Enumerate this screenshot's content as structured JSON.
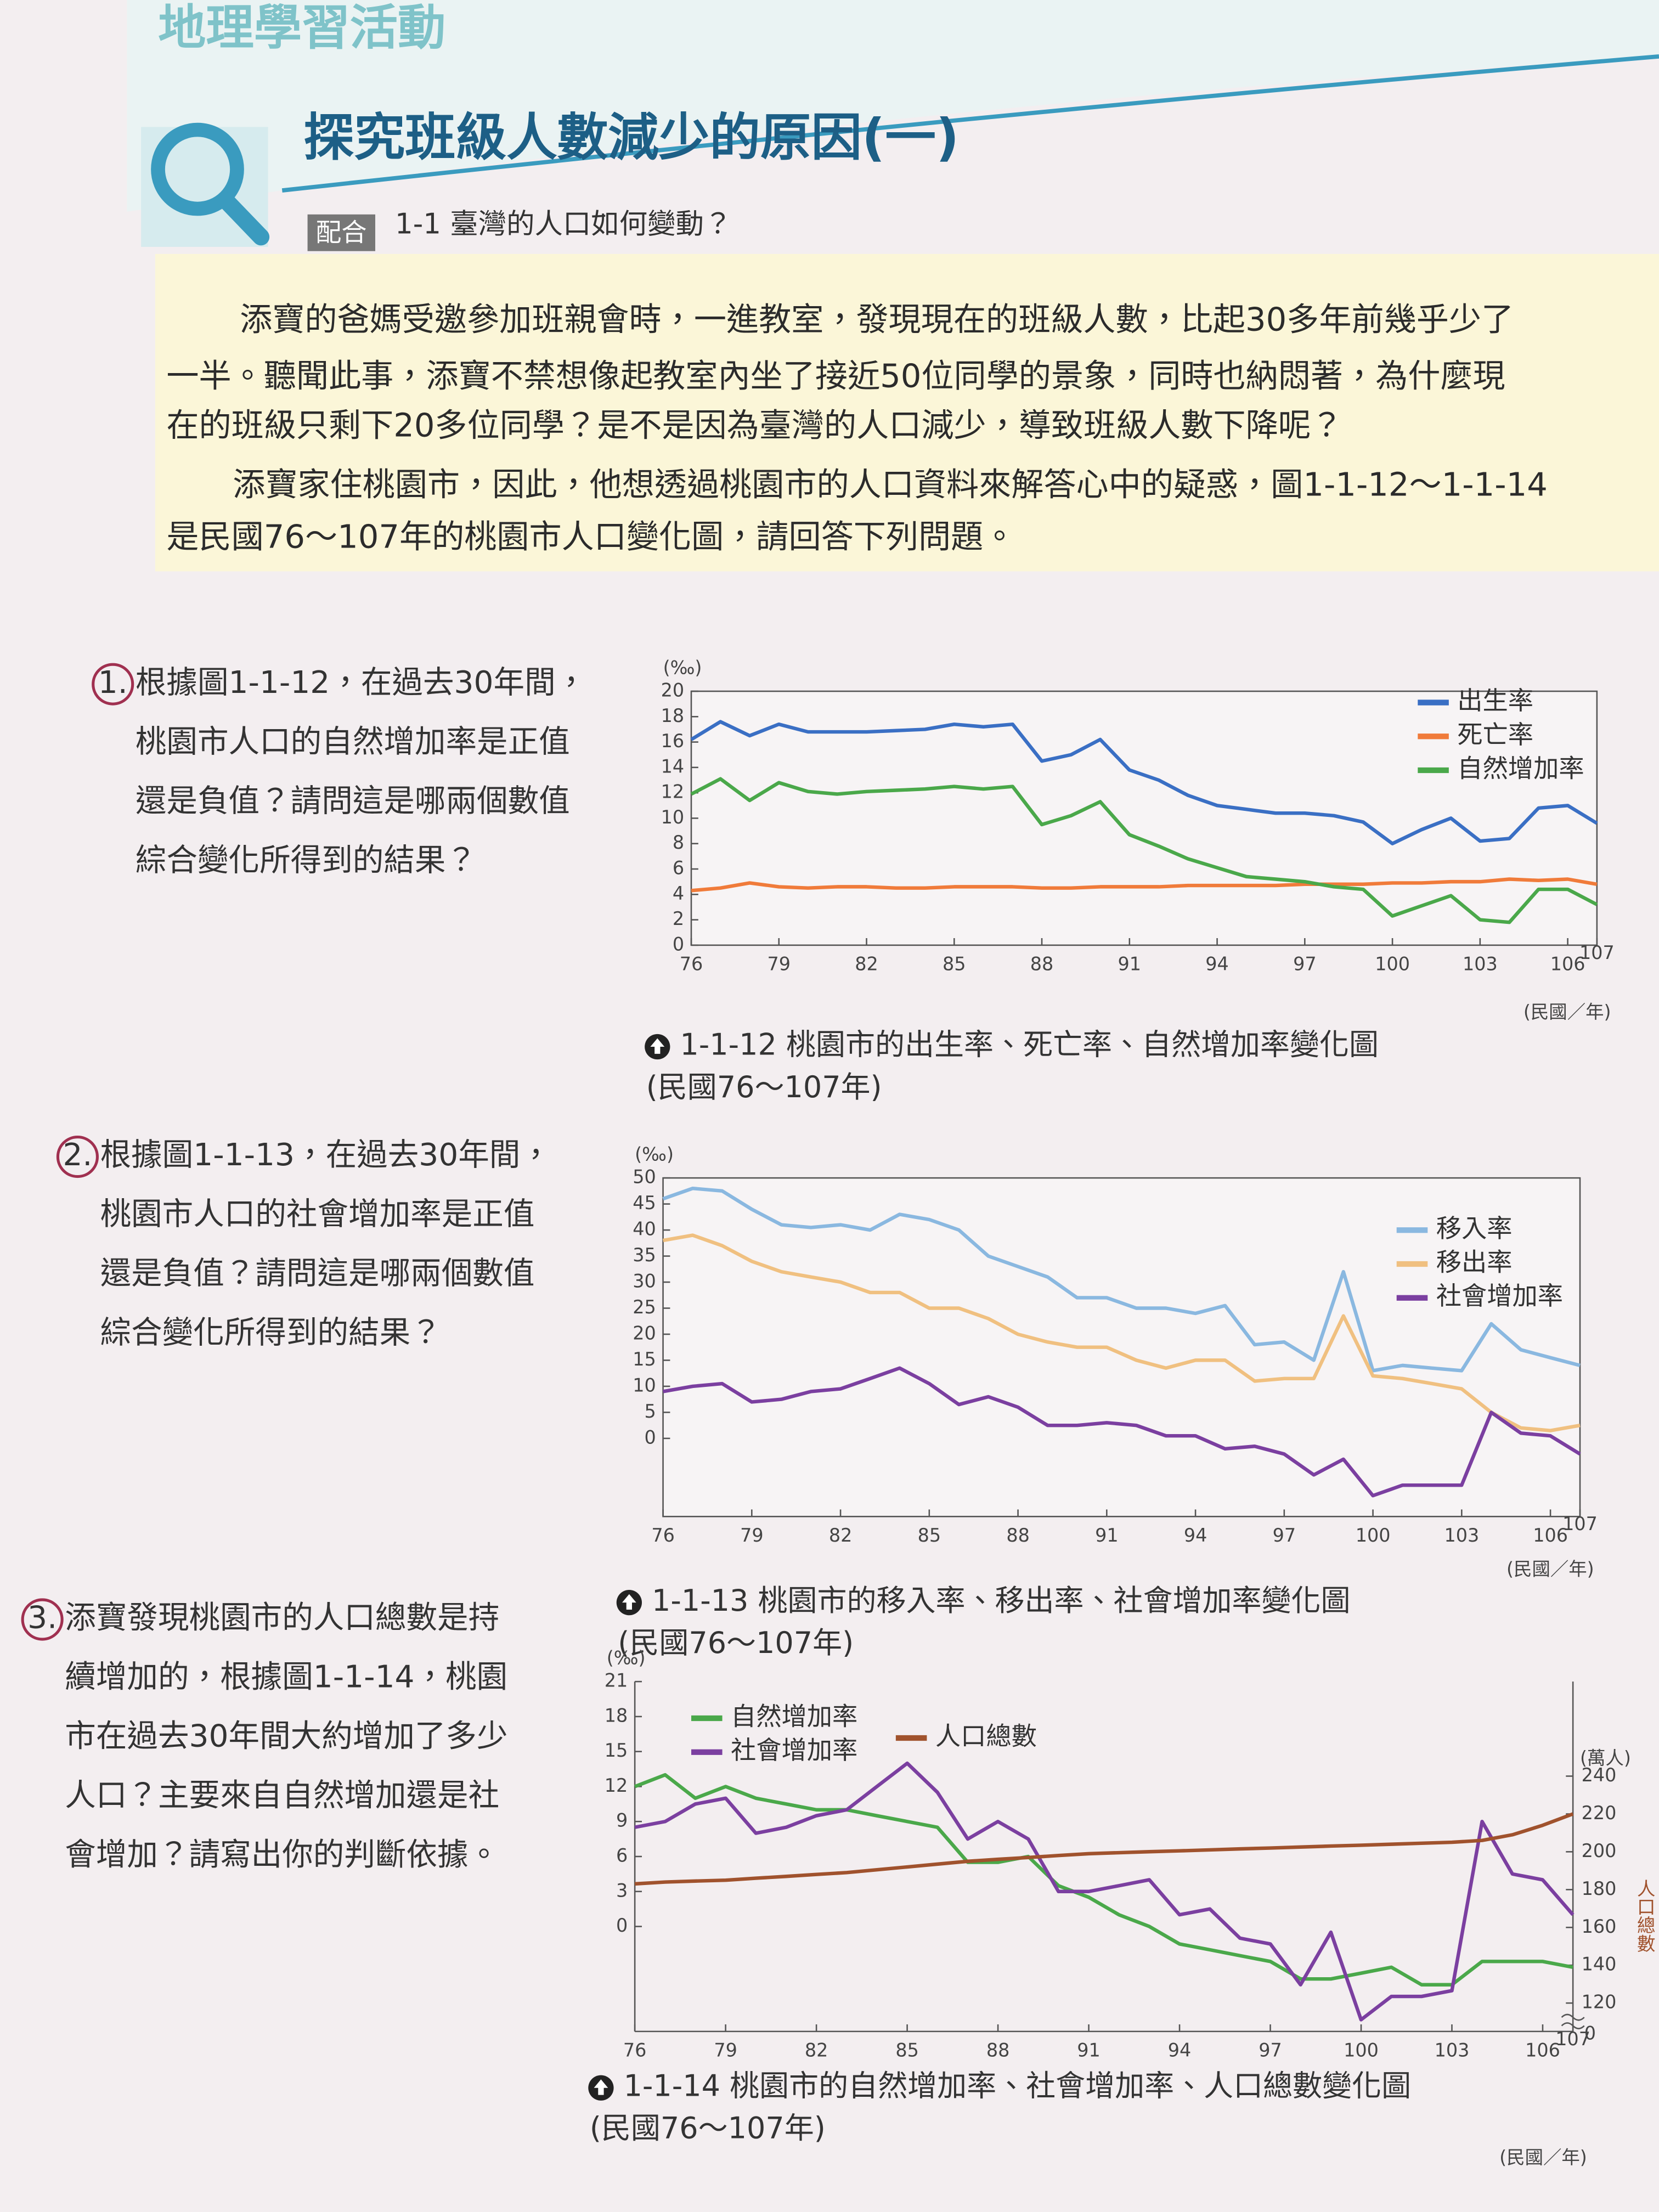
{
  "header": {
    "section": "地理學習活動",
    "title": "探究班級人數減少的原因(一)",
    "tag": "配合",
    "ref": "1-1 臺灣的人口如何變動？"
  },
  "intro": {
    "lines": [
      "添寶的爸媽受邀參加班親會時，一進教室，發現現在的班級人數，比起30多年前幾乎少了",
      "一半。聽聞此事，添寶不禁想像起教室內坐了接近50位同學的景象，同時也納悶著，為什麼現",
      "在的班級只剩下20多位同學？是不是因為臺灣的人口減少，導致班級人數下降呢？",
      "添寶家住桃園市，因此，他想透過桃園市的人口資料來解答心中的疑惑，圖1-1-12～1-1-14",
      "是民國76～107年的桃園市人口變化圖，請回答下列問題。"
    ]
  },
  "questions": [
    {
      "number": "1.",
      "lines": [
        "根據圖1-1-12，在過去30年間，",
        "桃園市人口的自然增加率是正值",
        "還是負值？請問這是哪兩個數值",
        "綜合變化所得到的結果？"
      ]
    },
    {
      "number": "2.",
      "lines": [
        "根據圖1-1-13，在過去30年間，",
        "桃園市人口的社會增加率是正值",
        "還是負值？請問這是哪兩個數值",
        "綜合變化所得到的結果？"
      ]
    },
    {
      "number": "3.",
      "lines": [
        "添寶發現桃園市的人口總數是持",
        "續增加的，根據圖1-1-14，桃園",
        "市在過去30年間大約增加了多少",
        "人口？主要來自自然增加還是社",
        "會增加？請寫出你的判斷依據。"
      ]
    }
  ],
  "chart_data": [
    {
      "type": "line",
      "y_unit": "(‰)",
      "x_label": "(民國／年)",
      "caption": "1-1-12 桃園市的出生率、死亡率、自然增加率變化圖",
      "caption_range": "(民國76～107年)",
      "legend": "top-right",
      "frame": true,
      "x": [
        76,
        77,
        78,
        79,
        80,
        81,
        82,
        83,
        84,
        85,
        86,
        87,
        88,
        89,
        90,
        91,
        92,
        93,
        94,
        95,
        96,
        97,
        98,
        99,
        100,
        101,
        102,
        103,
        104,
        105,
        106,
        107
      ],
      "xlim": [
        76,
        107
      ],
      "xticks": [
        76,
        79,
        82,
        85,
        88,
        91,
        94,
        97,
        100,
        103,
        106,
        107
      ],
      "ylim": [
        0,
        20
      ],
      "yticks": [
        0,
        2,
        4,
        6,
        8,
        10,
        12,
        14,
        16,
        18,
        20
      ],
      "series": [
        {
          "name": "出生率",
          "color": "#3a6fc4",
          "values": [
            16.2,
            17.6,
            16.5,
            17.4,
            16.8,
            16.8,
            16.8,
            16.9,
            17.0,
            17.4,
            17.2,
            17.4,
            14.5,
            15.0,
            16.2,
            13.8,
            13.0,
            11.8,
            11.0,
            10.7,
            10.4,
            10.4,
            10.2,
            9.7,
            8.0,
            9.1,
            10.0,
            8.2,
            8.4,
            10.8,
            11.0,
            9.6
          ]
        },
        {
          "name": "死亡率",
          "color": "#f07b3a",
          "values": [
            4.3,
            4.5,
            4.9,
            4.6,
            4.5,
            4.6,
            4.6,
            4.5,
            4.5,
            4.6,
            4.6,
            4.6,
            4.5,
            4.5,
            4.6,
            4.6,
            4.6,
            4.7,
            4.7,
            4.7,
            4.7,
            4.8,
            4.8,
            4.8,
            4.9,
            4.9,
            5.0,
            5.0,
            5.2,
            5.1,
            5.2,
            4.8
          ]
        },
        {
          "name": "自然增加率",
          "color": "#4aa84a",
          "values": [
            11.9,
            13.1,
            11.4,
            12.8,
            12.1,
            11.9,
            12.1,
            12.2,
            12.3,
            12.5,
            12.3,
            12.5,
            9.5,
            10.2,
            11.3,
            8.7,
            7.8,
            6.8,
            6.1,
            5.4,
            5.2,
            5.0,
            4.6,
            4.4,
            2.3,
            3.1,
            3.9,
            2.0,
            1.8,
            4.4,
            4.4,
            3.2
          ]
        }
      ]
    },
    {
      "type": "line",
      "y_unit": "(‰)",
      "x_label": "(民國／年)",
      "caption": "1-1-13 桃園市的移入率、移出率、社會增加率變化圖",
      "caption_range": "(民國76～107年)",
      "legend": "top-right",
      "frame": true,
      "x": [
        76,
        77,
        78,
        79,
        80,
        81,
        82,
        83,
        84,
        85,
        86,
        87,
        88,
        89,
        90,
        91,
        92,
        93,
        94,
        95,
        96,
        97,
        98,
        99,
        100,
        101,
        102,
        103,
        104,
        105,
        106,
        107
      ],
      "xlim": [
        76,
        107
      ],
      "xticks": [
        76,
        79,
        82,
        85,
        88,
        91,
        94,
        97,
        100,
        103,
        106,
        107
      ],
      "ylim": [
        -15,
        50
      ],
      "yticks": [
        0,
        5,
        10,
        15,
        20,
        25,
        30,
        35,
        40,
        45,
        50
      ],
      "series": [
        {
          "name": "移入率",
          "color": "#8ab8e0",
          "values": [
            46,
            48,
            47.5,
            44,
            41,
            40.5,
            41,
            40,
            43,
            42,
            40,
            35,
            33,
            31,
            27,
            27,
            25,
            25,
            24,
            25.5,
            18,
            18.5,
            15,
            32,
            13,
            14,
            13.5,
            13,
            22,
            17,
            15.5,
            14
          ]
        },
        {
          "name": "移出率",
          "color": "#f0c080",
          "values": [
            38,
            39,
            37,
            34,
            32,
            31,
            30,
            28,
            28,
            25,
            25,
            23,
            20,
            18.5,
            17.5,
            17.5,
            15,
            13.5,
            15,
            15,
            11,
            11.5,
            11.5,
            23.5,
            12,
            11.5,
            10.5,
            9.5,
            5,
            2,
            1.5,
            2.5
          ]
        },
        {
          "name": "社會增加率",
          "color": "#7b3fa0",
          "values": [
            9,
            10,
            10.5,
            7,
            7.5,
            9,
            9.5,
            11.5,
            13.5,
            10.5,
            6.5,
            8,
            6,
            2.5,
            2.5,
            3,
            2.5,
            0.5,
            0.5,
            -2,
            -1.5,
            -3,
            -7,
            -4,
            -11,
            -9,
            -9,
            -9,
            5,
            1,
            0.5,
            -3
          ]
        }
      ]
    },
    {
      "type": "line",
      "y_unit": "(‰)",
      "x_label": "(民國／年)",
      "y2_unit": "(萬人)",
      "y2_label": "人口總數",
      "y2_break_label": "0",
      "caption": "1-1-14 桃園市的自然增加率、社會增加率、人口總數變化圖",
      "caption_range": "(民國76～107年)",
      "legend": "top-left",
      "frame": false,
      "x": [
        76,
        77,
        78,
        79,
        80,
        81,
        82,
        83,
        84,
        85,
        86,
        87,
        88,
        89,
        90,
        91,
        92,
        93,
        94,
        95,
        96,
        97,
        98,
        99,
        100,
        101,
        102,
        103,
        104,
        105,
        106,
        107
      ],
      "xlim": [
        76,
        107
      ],
      "xticks": [
        76,
        79,
        82,
        85,
        88,
        91,
        94,
        97,
        100,
        103,
        106,
        107
      ],
      "ylim": [
        -9,
        21
      ],
      "yticks": [
        0,
        3,
        6,
        9,
        12,
        15,
        18,
        21
      ],
      "y2lim": [
        105,
        290
      ],
      "y2ticks": [
        120,
        140,
        160,
        180,
        200,
        220,
        240
      ],
      "series": [
        {
          "name": "自然增加率",
          "color": "#4aa84a",
          "values": [
            12,
            13,
            11,
            12,
            11,
            10.5,
            10,
            10,
            9.5,
            9,
            8.5,
            5.5,
            5.5,
            6,
            3.5,
            2.5,
            1,
            0,
            -1.5,
            -2,
            -2.5,
            -3,
            -4.5,
            -4.5,
            -4,
            -3.5,
            -5,
            -5,
            -3,
            -3,
            -3,
            -3.5
          ]
        },
        {
          "name": "社會增加率",
          "color": "#7b3fa0",
          "values": [
            8.5,
            9,
            10.5,
            11,
            8,
            8.5,
            9.5,
            10,
            12,
            14,
            11.5,
            7.5,
            9,
            7.5,
            3,
            3,
            3.5,
            4,
            1,
            1.5,
            -1,
            -1.5,
            -5,
            -0.5,
            -8,
            -6,
            -6,
            -5.5,
            9,
            4.5,
            4,
            1
          ]
        },
        {
          "name": "人口總數",
          "color": "#a0522d",
          "axis": "y2",
          "values": [
            183,
            184,
            184.5,
            185,
            186,
            187,
            188,
            189,
            190.5,
            192,
            193.5,
            195,
            196,
            197,
            198,
            199,
            199.5,
            200,
            200.5,
            201,
            201.5,
            202,
            202.5,
            203,
            203.5,
            204,
            204.5,
            205,
            206,
            209,
            214,
            220
          ]
        }
      ]
    }
  ]
}
